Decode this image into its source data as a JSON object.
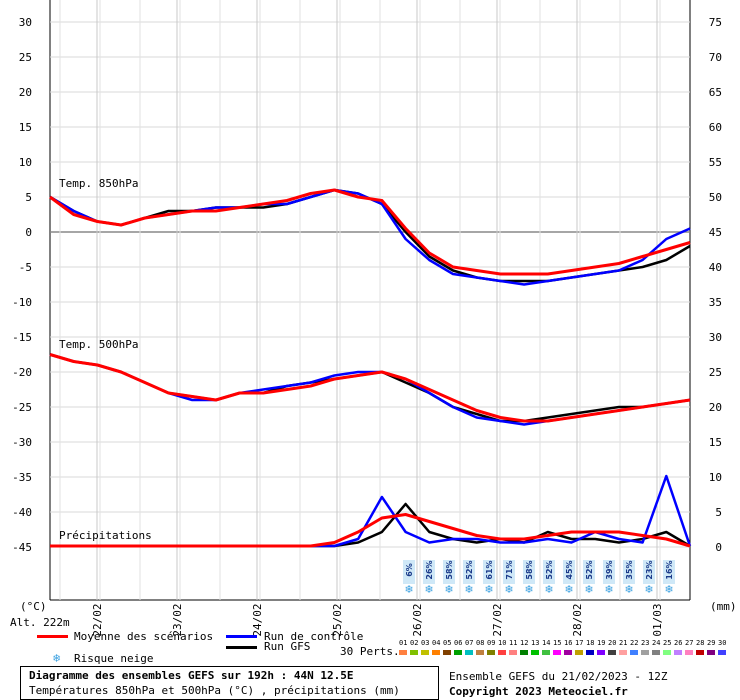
{
  "chart_data": {
    "type": "line",
    "title": "Diagramme des ensembles GEFS sur 192h : 44N 12.5E",
    "subtitle": "Températures 850hPa et 500hPa (°C) , précipitations (mm)",
    "left_axis": {
      "label": "(°C)",
      "ticks": [
        30,
        25,
        20,
        15,
        10,
        5,
        0,
        -5,
        -10,
        -15,
        -20,
        -25,
        -30,
        -35,
        -40,
        -45
      ],
      "ylim": [
        -45,
        30
      ]
    },
    "right_axis": {
      "label": "(mm)",
      "ticks": [
        75,
        70,
        65,
        60,
        55,
        50,
        45,
        40,
        35,
        30,
        25,
        20,
        15,
        10,
        5,
        0
      ],
      "ylim": [
        0,
        75
      ]
    },
    "x_labels": [
      "22/02",
      "23/02",
      "24/02",
      "25/02",
      "26/02",
      "27/02",
      "28/02",
      "01/03"
    ],
    "grid": true,
    "panel_labels": [
      "Temp. 850hPa",
      "Temp. 500hPa",
      "Précipitations"
    ],
    "altitude": "Alt. 222m",
    "snow_risk": [
      "6%",
      "26%",
      "58%",
      "52%",
      "61%",
      "71%",
      "58%",
      "52%",
      "45%",
      "52%",
      "39%",
      "35%",
      "23%",
      "16%"
    ],
    "series": [
      {
        "name": "Moyenne des scénarios",
        "color": "#ff0000",
        "t850": [
          5,
          2.5,
          1.5,
          1,
          2,
          2.5,
          3,
          3,
          3.5,
          4,
          4.5,
          5.5,
          6,
          5,
          4.5,
          0.5,
          -3,
          -5,
          -5.5,
          -6,
          -6,
          -6,
          -5.5,
          -5,
          -4.5,
          -3.5,
          -2.5,
          -1.5
        ],
        "t500": [
          -17.5,
          -18.5,
          -19,
          -20,
          -21.5,
          -23,
          -23.5,
          -24,
          -23,
          -23,
          -22.5,
          -22,
          -21,
          -20.5,
          -20,
          -21,
          -22.5,
          -24,
          -25.5,
          -26.5,
          -27,
          -27,
          -26.5,
          -26,
          -25.5,
          -25,
          -24.5,
          -24
        ],
        "precip": [
          0,
          0,
          0,
          0,
          0,
          0,
          0,
          0,
          0,
          0,
          0,
          0,
          0.5,
          2,
          4,
          4.5,
          3.5,
          2.5,
          1.5,
          1,
          1,
          1.5,
          2,
          2,
          2,
          1.5,
          1,
          0
        ]
      },
      {
        "name": "Run de contrôle",
        "color": "#0000ff",
        "t850": [
          5,
          3,
          1.5,
          1,
          2,
          2.5,
          3,
          3.5,
          3.5,
          4,
          4,
          5,
          6,
          5.5,
          4,
          -1,
          -4,
          -6,
          -6.5,
          -7,
          -7.5,
          -7,
          -6.5,
          -6,
          -5.5,
          -4,
          -1,
          0.5
        ],
        "t500": [
          -17.5,
          -18.5,
          -19,
          -20,
          -21.5,
          -23,
          -24,
          -24,
          -23,
          -22.5,
          -22,
          -21.5,
          -20.5,
          -20,
          -20,
          -21,
          -23,
          -25,
          -26.5,
          -27,
          -27.5,
          -27,
          -26.5,
          -26,
          -25.5,
          -25,
          -24.5,
          -24
        ],
        "precip": [
          0,
          0,
          0,
          0,
          0,
          0,
          0,
          0,
          0,
          0,
          0,
          0,
          0,
          1,
          7,
          2,
          0.5,
          1,
          1,
          0.5,
          0.5,
          1,
          0.5,
          2,
          1,
          0.5,
          10,
          0
        ]
      },
      {
        "name": "Run GFS",
        "color": "#000000",
        "t850": [
          5,
          3,
          1.5,
          1,
          2,
          3,
          3,
          3.5,
          3.5,
          3.5,
          4,
          5,
          6,
          5.5,
          4,
          0,
          -3.5,
          -5.5,
          -6.5,
          -7,
          -7,
          -7,
          -6.5,
          -6,
          -5.5,
          -5,
          -4,
          -2
        ],
        "t500": [
          -17.5,
          -18.5,
          -19,
          -20,
          -21.5,
          -23,
          -23.5,
          -24,
          -23,
          -23,
          -22,
          -21.5,
          -21,
          -20.5,
          -20,
          -21.5,
          -23,
          -25,
          -26,
          -27,
          -27,
          -26.5,
          -26,
          -25.5,
          -25,
          -25,
          -24.5,
          -24
        ],
        "precip": [
          0,
          0,
          0,
          0,
          0,
          0,
          0,
          0,
          0,
          0,
          0,
          0,
          0,
          0.5,
          2,
          6,
          2,
          1,
          0.5,
          1,
          0.5,
          2,
          1,
          1,
          0.5,
          1,
          2,
          0
        ]
      }
    ]
  },
  "legend": {
    "mean": "Moyenne des scénarios",
    "control": "Run de contrôle",
    "gfs": "Run GFS",
    "snow": "Risque neige",
    "perts": "30 Perts.",
    "pert_ids": [
      "01",
      "02",
      "03",
      "04",
      "05",
      "06",
      "07",
      "08",
      "09",
      "10",
      "11",
      "12",
      "13",
      "14",
      "15",
      "16",
      "17",
      "18",
      "19",
      "20",
      "21",
      "22",
      "23",
      "24",
      "25",
      "26",
      "27",
      "28",
      "29",
      "30"
    ],
    "pert_colors": [
      "#ff8040",
      "#80c000",
      "#c0c000",
      "#ff8000",
      "#804000",
      "#00a000",
      "#00c0c0",
      "#c08040",
      "#808000",
      "#ff4040",
      "#ff8080",
      "#008000",
      "#00c000",
      "#40c040",
      "#ff00ff",
      "#a000a0",
      "#c0a000",
      "#0000c0",
      "#8000ff",
      "#404040",
      "#ffa0a0",
      "#4080ff",
      "#a0a0a0",
      "#808080",
      "#80ff80",
      "#c080ff",
      "#ff80c0",
      "#c00000",
      "#800080",
      "#4040ff"
    ]
  },
  "footer": {
    "title": "Diagramme des ensembles GEFS sur 192h : 44N 12.5E",
    "subtitle": "Températures 850hPa et 500hPa (°C) , précipitations (mm)",
    "run": "Ensemble GEFS du 21/02/2023 - 12Z",
    "copyright": "Copyright 2023 Meteociel.fr"
  }
}
